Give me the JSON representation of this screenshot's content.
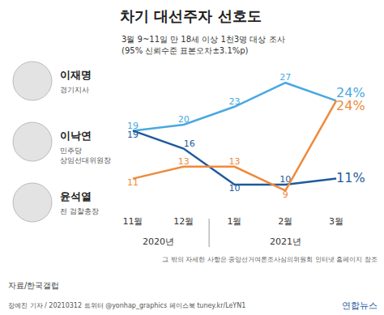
{
  "chart_data": {
    "type": "line",
    "title": "차기 대선주자 선호도",
    "subtitle": [
      "3월 9~11일 만 18세 이상 1천3명 대상 조사",
      "(95% 신뢰수준 표본오차±3.1%p)"
    ],
    "categories": [
      "11월",
      "12월",
      "1월",
      "2월",
      "3월"
    ],
    "year_labels": [
      {
        "label": "2020년",
        "categories": [
          "11월",
          "12월"
        ]
      },
      {
        "label": "2021년",
        "categories": [
          "1월",
          "2월",
          "3월"
        ]
      }
    ],
    "series": [
      {
        "name": "이재명",
        "role": "경기지사",
        "color": "#4aa8e0",
        "values": [
          19,
          20,
          23,
          27,
          24
        ],
        "value_labels": [
          "19",
          "20",
          "23",
          "27",
          "24%"
        ]
      },
      {
        "name": "이낙연",
        "role": "민주당 상임선대위원장",
        "color": "#1f5a9c",
        "values": [
          19,
          16,
          10,
          10,
          11
        ],
        "value_labels": [
          "19",
          "16",
          "10",
          "10",
          "11%"
        ]
      },
      {
        "name": "윤석열",
        "role": "전 검찰총장",
        "color": "#ee8a3c",
        "values": [
          11,
          13,
          13,
          9,
          24
        ],
        "value_labels": [
          "11",
          "13",
          "13",
          "9",
          "24%"
        ]
      }
    ],
    "ylim": [
      5,
      30
    ],
    "tick_labels": "x",
    "grid": false,
    "data_labels": true,
    "line_style": "solid",
    "annotations": [
      "그 밖의 자세한 사항은 중앙선거여론조사심의위원회 인터넷 홈페이지 참조",
      "자료/한국갤럽",
      "장예진 기자 / 20210312 트위터 @yonhap_graphics 페이스북 tuney.kr/LeYN1",
      "연합뉴스"
    ]
  }
}
